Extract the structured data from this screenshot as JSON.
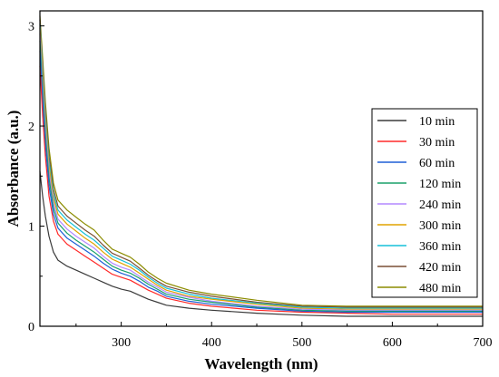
{
  "chart_data": {
    "type": "line",
    "title": "",
    "xlabel": "Wavelength (nm)",
    "ylabel": "Absorbance (a.u.)",
    "xlim": [
      210,
      700
    ],
    "ylim": [
      0,
      3.15
    ],
    "xticks": [
      300,
      400,
      500,
      600,
      700
    ],
    "yticks": [
      0,
      1,
      2,
      3
    ],
    "grid": false,
    "legend_position": "right",
    "x": [
      210,
      213,
      216,
      220,
      225,
      230,
      240,
      250,
      260,
      270,
      280,
      290,
      300,
      310,
      320,
      330,
      340,
      350,
      375,
      400,
      450,
      500,
      550,
      600,
      650,
      700
    ],
    "series": [
      {
        "name": "10 min",
        "color": "#3a3a3a",
        "values": [
          1.55,
          1.3,
          1.1,
          0.9,
          0.74,
          0.66,
          0.6,
          0.56,
          0.52,
          0.48,
          0.44,
          0.4,
          0.37,
          0.35,
          0.31,
          0.27,
          0.24,
          0.21,
          0.18,
          0.16,
          0.13,
          0.11,
          0.1,
          0.1,
          0.1,
          0.1
        ]
      },
      {
        "name": "30 min",
        "color": "#ff2a2a",
        "values": [
          2.6,
          2.1,
          1.7,
          1.3,
          1.05,
          0.92,
          0.82,
          0.76,
          0.7,
          0.64,
          0.58,
          0.52,
          0.49,
          0.46,
          0.41,
          0.36,
          0.32,
          0.28,
          0.23,
          0.2,
          0.16,
          0.14,
          0.13,
          0.12,
          0.12,
          0.12
        ]
      },
      {
        "name": "60 min",
        "color": "#1e5fd6",
        "values": [
          2.75,
          2.25,
          1.82,
          1.4,
          1.12,
          0.98,
          0.88,
          0.82,
          0.76,
          0.7,
          0.63,
          0.57,
          0.53,
          0.5,
          0.45,
          0.39,
          0.35,
          0.3,
          0.25,
          0.22,
          0.18,
          0.15,
          0.14,
          0.14,
          0.14,
          0.14
        ]
      },
      {
        "name": "120 min",
        "color": "#1aa06a",
        "values": [
          2.85,
          2.35,
          1.92,
          1.48,
          1.18,
          1.03,
          0.93,
          0.86,
          0.8,
          0.74,
          0.67,
          0.6,
          0.56,
          0.53,
          0.48,
          0.42,
          0.37,
          0.32,
          0.27,
          0.24,
          0.19,
          0.16,
          0.15,
          0.15,
          0.15,
          0.15
        ]
      },
      {
        "name": "240 min",
        "color": "#b388ff",
        "values": [
          2.92,
          2.42,
          1.98,
          1.54,
          1.23,
          1.07,
          0.97,
          0.9,
          0.84,
          0.78,
          0.7,
          0.63,
          0.59,
          0.56,
          0.5,
          0.44,
          0.39,
          0.34,
          0.29,
          0.25,
          0.2,
          0.17,
          0.16,
          0.16,
          0.16,
          0.16
        ]
      },
      {
        "name": "300 min",
        "color": "#e0a300",
        "values": [
          2.98,
          2.5,
          2.05,
          1.6,
          1.28,
          1.12,
          1.02,
          0.95,
          0.88,
          0.82,
          0.74,
          0.67,
          0.63,
          0.59,
          0.53,
          0.47,
          0.41,
          0.36,
          0.3,
          0.27,
          0.22,
          0.18,
          0.17,
          0.17,
          0.17,
          0.17
        ]
      },
      {
        "name": "360 min",
        "color": "#17c1d8",
        "values": [
          3.02,
          2.55,
          2.1,
          1.65,
          1.32,
          1.16,
          1.06,
          0.99,
          0.92,
          0.86,
          0.78,
          0.7,
          0.66,
          0.62,
          0.56,
          0.49,
          0.43,
          0.38,
          0.32,
          0.28,
          0.23,
          0.19,
          0.18,
          0.18,
          0.18,
          0.18
        ]
      },
      {
        "name": "420 min",
        "color": "#7a4f35",
        "values": [
          3.06,
          2.6,
          2.16,
          1.7,
          1.37,
          1.2,
          1.1,
          1.03,
          0.96,
          0.9,
          0.81,
          0.73,
          0.69,
          0.65,
          0.58,
          0.51,
          0.45,
          0.4,
          0.34,
          0.3,
          0.24,
          0.2,
          0.19,
          0.19,
          0.19,
          0.19
        ]
      },
      {
        "name": "480 min",
        "color": "#8c8c00",
        "values": [
          3.1,
          2.68,
          2.24,
          1.78,
          1.43,
          1.26,
          1.16,
          1.09,
          1.02,
          0.96,
          0.86,
          0.77,
          0.73,
          0.69,
          0.62,
          0.54,
          0.48,
          0.43,
          0.36,
          0.32,
          0.26,
          0.21,
          0.2,
          0.2,
          0.2,
          0.2
        ]
      }
    ]
  }
}
